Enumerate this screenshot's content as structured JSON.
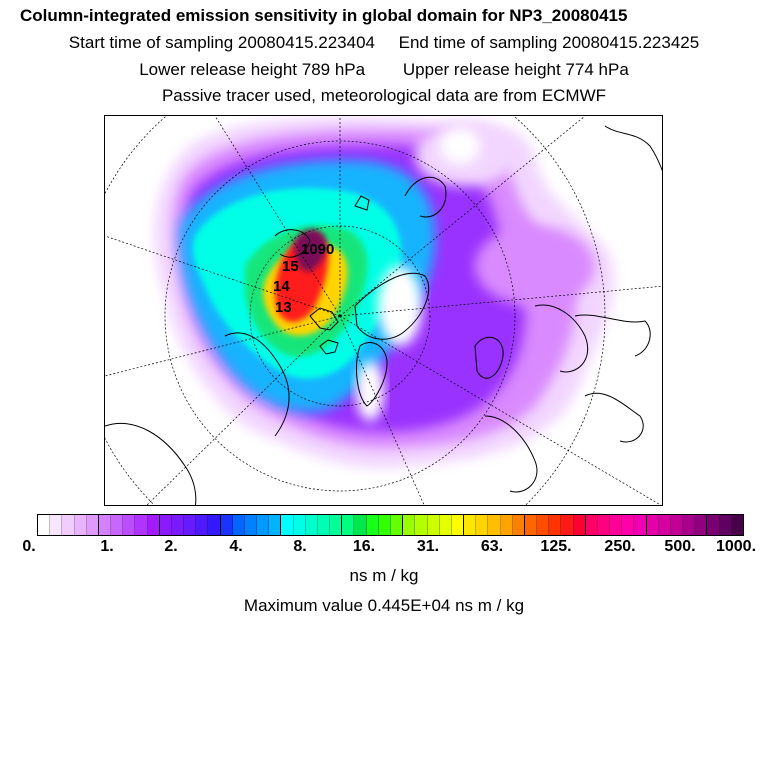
{
  "header": {
    "title": "Column-integrated emission sensitivity in global domain for NP3_20080415",
    "start_time": "Start time of sampling 20080415.223404",
    "end_time": "End time of sampling 20080415.223425",
    "lower_height": "Lower release height  789 hPa",
    "upper_height": "Upper release height  774 hPa",
    "note": "Passive tracer used, meteorological data are from ECMWF"
  },
  "map": {
    "labels": [
      "13",
      "14",
      "15",
      "1090"
    ],
    "plume_colors": [
      "#f2d6ff",
      "#d98aff",
      "#9a30ff",
      "#19b4ff",
      "#00ffe6",
      "#19e67a",
      "#ffd400",
      "#ff1a1a",
      "#7a0a5a"
    ]
  },
  "colorbar": {
    "tick_labels": [
      "0.",
      "1.",
      "2.",
      "4.",
      "8.",
      "16.",
      "31.",
      "63.",
      "125.",
      "250.",
      "500.",
      "1000."
    ],
    "colors": [
      "#ffffff",
      "#f8e6ff",
      "#f0ccff",
      "#e8b3ff",
      "#e099ff",
      "#d480ff",
      "#c866ff",
      "#bc4dff",
      "#b033ff",
      "#a31aff",
      "#8c1aff",
      "#7a1aff",
      "#661aff",
      "#4d1aff",
      "#3319ff",
      "#1a33ff",
      "#0066ff",
      "#0080ff",
      "#0099ff",
      "#00b3ff",
      "#00ffff",
      "#00ffe6",
      "#00ffcc",
      "#00ffb3",
      "#00ff99",
      "#00ff80",
      "#00e64d",
      "#1aff1a",
      "#33ff00",
      "#66ff00",
      "#99ff00",
      "#b3ff00",
      "#ccff00",
      "#e6ff00",
      "#ffff00",
      "#ffe600",
      "#ffd400",
      "#ffbf00",
      "#ffa300",
      "#ff8000",
      "#ff6600",
      "#ff4d00",
      "#ff3300",
      "#ff1a1a",
      "#ff0033",
      "#ff0066",
      "#ff0080",
      "#ff0099",
      "#ff00aa",
      "#f000b3",
      "#e600aa",
      "#d400a0",
      "#c00096",
      "#a8008c",
      "#900080",
      "#780070",
      "#600060",
      "#480048"
    ],
    "unit": "ns m / kg"
  },
  "footer": {
    "max_value": "Maximum value  0.445E+04 ns m / kg"
  }
}
